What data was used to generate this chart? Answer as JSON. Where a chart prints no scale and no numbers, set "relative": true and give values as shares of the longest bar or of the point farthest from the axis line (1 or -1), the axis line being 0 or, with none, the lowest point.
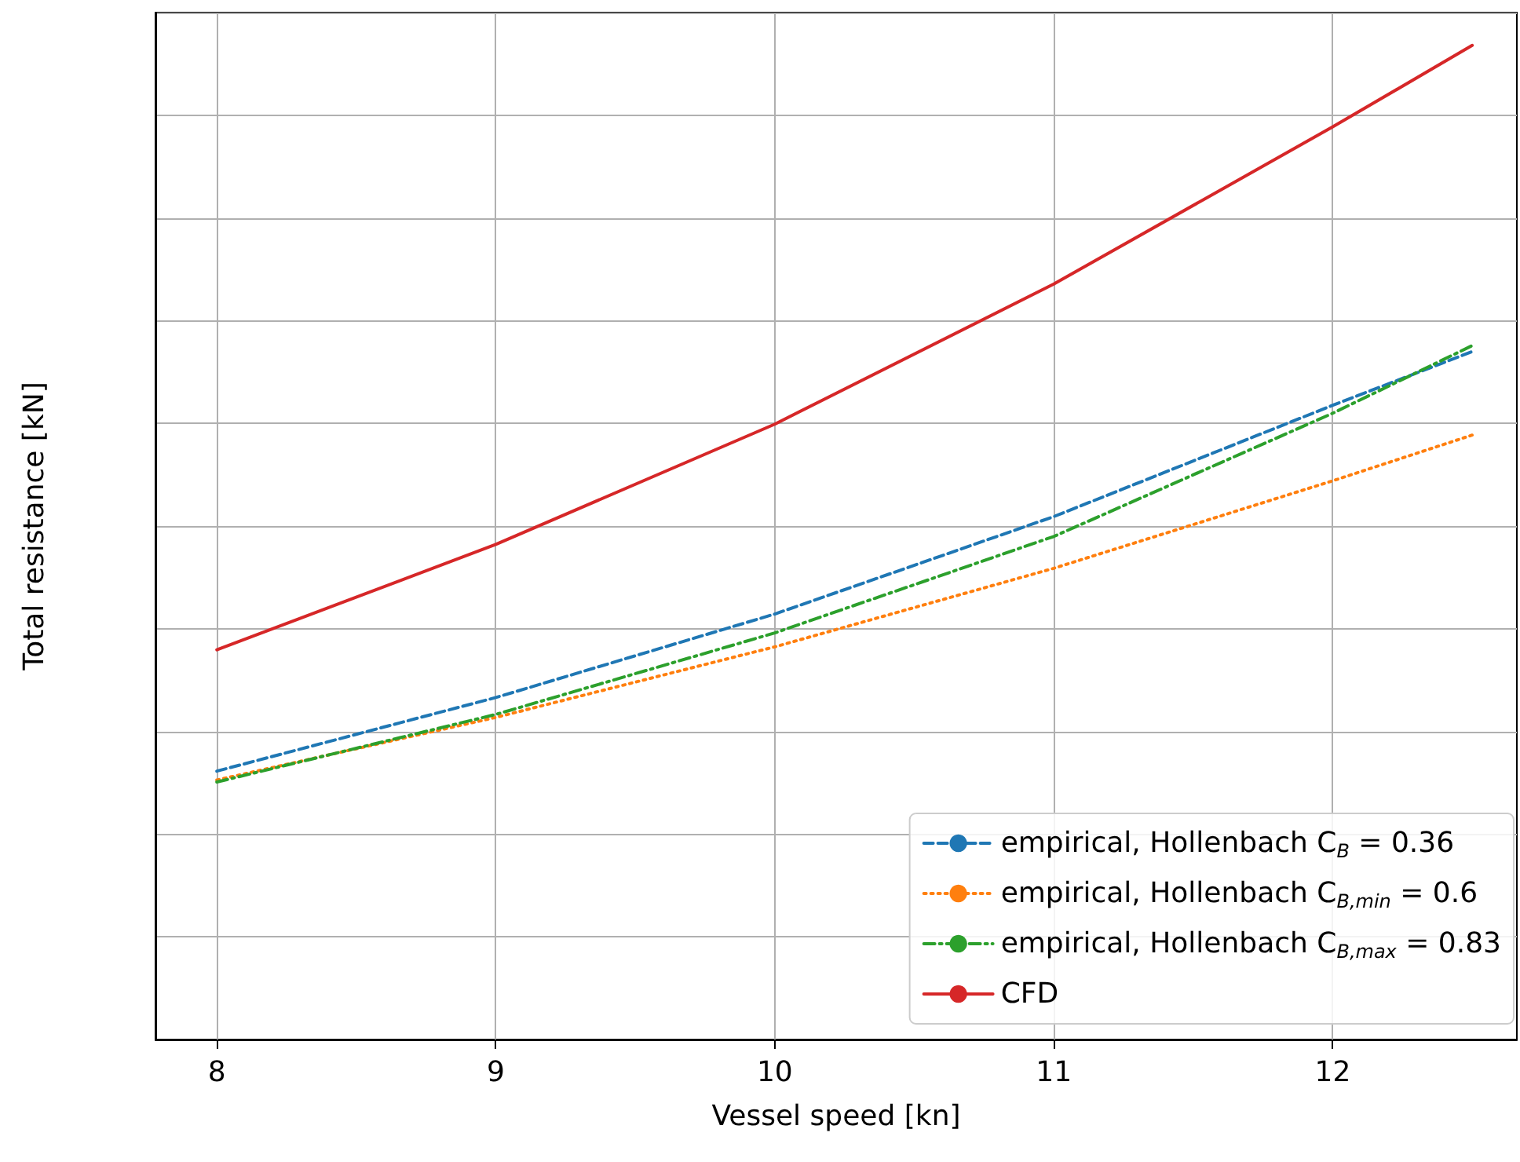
{
  "chart_data": {
    "type": "line",
    "relative": true,
    "xlabel": "Vessel speed [kn]",
    "ylabel": "Total resistance [kN]",
    "xlim": [
      7.78,
      12.66
    ],
    "xticks": [
      8,
      9,
      10,
      11,
      12
    ],
    "grid": true,
    "legend": "bottom right",
    "series": [
      {
        "name": "empirical, Hollenbach C$_{B}$ = 0.36",
        "color": "#1f77b4",
        "line_style": "dashed",
        "x": [
          8,
          9,
          10,
          11,
          12,
          12.5
        ],
        "values": [
          0.27,
          0.344,
          0.428,
          0.526,
          0.638,
          0.692
        ]
      },
      {
        "name": "empirical, Hollenbach C$_{B,min}$ = 0.6",
        "color": "#ff7f0e",
        "line_style": "dotted",
        "x": [
          8,
          9,
          10,
          11,
          12,
          12.5
        ],
        "values": [
          0.261,
          0.324,
          0.395,
          0.474,
          0.562,
          0.608
        ]
      },
      {
        "name": "empirical, Hollenbach C$_{B,max}$ = 0.83",
        "color": "#2ca02c",
        "line_style": "dashdot",
        "x": [
          8,
          9,
          10,
          11,
          12,
          12.5
        ],
        "values": [
          0.259,
          0.327,
          0.409,
          0.506,
          0.63,
          0.698
        ]
      },
      {
        "name": "CFD",
        "color": "#d62728",
        "line_style": "solid",
        "x": [
          8,
          9,
          10,
          11,
          12,
          12.5
        ],
        "values": [
          0.392,
          0.498,
          0.619,
          0.76,
          0.918,
          1
        ]
      }
    ]
  }
}
